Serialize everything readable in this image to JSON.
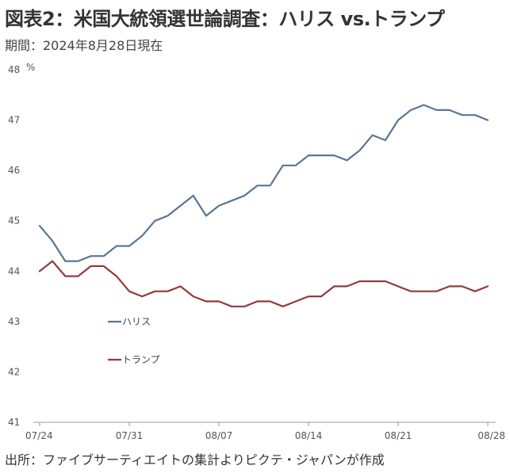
{
  "title": "図表2：米国大統領選世論調査：ハリス vs.トランプ",
  "subtitle": "期間：2024年8月28日現在",
  "source": "出所：ファイブサーティエイトの集計よりピクテ・ジャパンが作成",
  "chart_data": {
    "type": "line",
    "ylabel": "%",
    "ylim": [
      41,
      48
    ],
    "yticks": [
      41,
      42,
      43,
      44,
      45,
      46,
      47,
      48
    ],
    "x_range": [
      "07/24",
      "08/28"
    ],
    "xticks": [
      "07/24",
      "07/31",
      "08/07",
      "08/14",
      "08/21",
      "08/28"
    ],
    "grid": false,
    "legend_position": "inside-left",
    "x": [
      "07/24",
      "07/25",
      "07/26",
      "07/27",
      "07/28",
      "07/29",
      "07/30",
      "07/31",
      "08/01",
      "08/02",
      "08/03",
      "08/04",
      "08/05",
      "08/06",
      "08/07",
      "08/08",
      "08/09",
      "08/10",
      "08/11",
      "08/12",
      "08/13",
      "08/14",
      "08/15",
      "08/16",
      "08/17",
      "08/18",
      "08/19",
      "08/20",
      "08/21",
      "08/22",
      "08/23",
      "08/24",
      "08/25",
      "08/26",
      "08/27",
      "08/28"
    ],
    "series": [
      {
        "name": "ハリス",
        "color": "#5a7595",
        "values": [
          44.9,
          44.6,
          44.2,
          44.2,
          44.3,
          44.3,
          44.5,
          44.5,
          44.7,
          45.0,
          45.1,
          45.3,
          45.5,
          45.1,
          45.3,
          45.4,
          45.5,
          45.7,
          45.7,
          46.1,
          46.1,
          46.3,
          46.3,
          46.3,
          46.2,
          46.4,
          46.7,
          46.6,
          47.0,
          47.2,
          47.3,
          47.2,
          47.2,
          47.1,
          47.1,
          47.0
        ]
      },
      {
        "name": "トランプ",
        "color": "#933a3c",
        "values": [
          44.0,
          44.2,
          43.9,
          43.9,
          44.1,
          44.1,
          43.9,
          43.6,
          43.5,
          43.6,
          43.6,
          43.7,
          43.5,
          43.4,
          43.4,
          43.3,
          43.3,
          43.4,
          43.4,
          43.3,
          43.4,
          43.5,
          43.5,
          43.7,
          43.7,
          43.8,
          43.8,
          43.8,
          43.7,
          43.6,
          43.6,
          43.6,
          43.7,
          43.7,
          43.6,
          43.7
        ]
      }
    ]
  }
}
